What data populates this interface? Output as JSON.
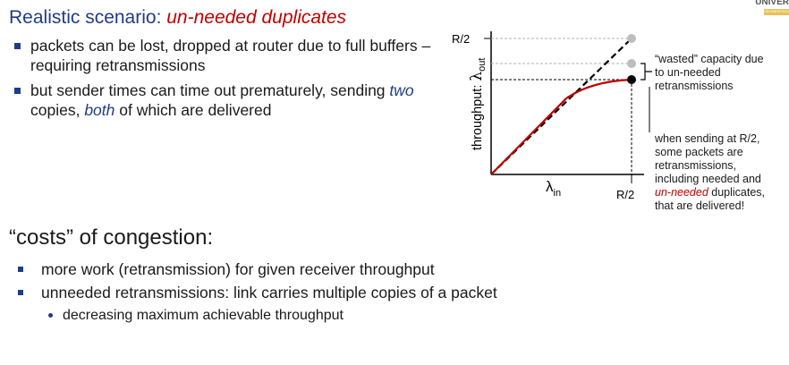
{
  "slide": {
    "title_prefix": "Realistic scenario: ",
    "title_emphasis": "un-needed duplicates",
    "bullets": {
      "b1": "packets can be lost, dropped at router due to full buffers – requiring retransmissions",
      "b2_pre": "but sender times can time out prematurely, sending ",
      "b2_em1": "two",
      "b2_mid": " copies, ",
      "b2_em2": "both",
      "b2_post": " of which are delivered"
    },
    "costs_heading": "“costs” of congestion:",
    "cost_items": {
      "i1": "more work (retransmission) for given receiver throughput",
      "i2": "unneeded retransmissions: link carries multiple copies of a packet",
      "i2_sub": "decreasing maximum achievable throughput"
    },
    "logo": {
      "line1": "UNIVER",
      "line2": "CELEBRATING"
    }
  },
  "graph": {
    "y_tick": "R/2",
    "x_tick": "R/2",
    "y_label": "throughput:",
    "y_symbol": "λ",
    "y_sub": "out",
    "x_symbol": "λ",
    "x_sub": "in",
    "curve_color": "#c00000",
    "dot_grey": "#bdbdbd",
    "dot_black": "#000000"
  },
  "annotations": {
    "wasted_l1": "“wasted” capacity due",
    "wasted_l2": "to un-needed",
    "wasted_l3": "retransmissions",
    "sending_pre": "when sending at R/2, some packets are retransmissions, including needed and ",
    "sending_em": "un-needed",
    "sending_post": " duplicates, that are delivered!"
  }
}
